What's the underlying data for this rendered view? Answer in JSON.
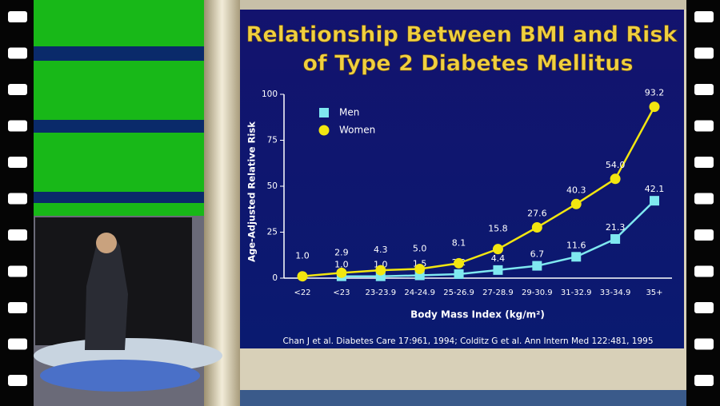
{
  "chart_data": {
    "type": "line",
    "title": "Relationship Between BMI and Risk of Type 2 Diabetes Mellitus",
    "x_label": "Body Mass Index (kg/m²)",
    "y_label": "Age-Adjusted Relative Risk",
    "annotation": "Chan J et al. Diabetes Care 17:961, 1994; Colditz G et al. Ann Intern Med 122:481, 1995",
    "categories": [
      "<22",
      "<23",
      "23-23.9",
      "24-24.9",
      "25-26.9",
      "27-28.9",
      "29-30.9",
      "31-32.9",
      "33-34.9",
      "35+"
    ],
    "series": [
      {
        "name": "Men",
        "color": "#7fe8f0",
        "marker": "square",
        "values": [
          null,
          1.0,
          1.0,
          1.5,
          2.2,
          4.4,
          6.7,
          11.6,
          21.3,
          42.1
        ],
        "value_labels": [
          null,
          "1.0",
          "1.0",
          "1.5",
          "2.2",
          "4.4",
          "6.7",
          "11.6",
          "21.3",
          "42.1"
        ]
      },
      {
        "name": "Women",
        "color": "#f2e610",
        "marker": "circle",
        "values": [
          1.0,
          2.9,
          4.3,
          5.0,
          8.1,
          15.8,
          27.6,
          40.3,
          54.0,
          93.2
        ],
        "value_labels": [
          "1.0",
          "2.9",
          "4.3",
          "5.0",
          "8.1",
          "15.8",
          "27.6",
          "40.3",
          "54.0",
          "93.2"
        ]
      }
    ],
    "ylim": [
      0,
      100
    ],
    "yticks": [
      0,
      25,
      50,
      75,
      100
    ],
    "grid": false,
    "legend": "top-left"
  }
}
